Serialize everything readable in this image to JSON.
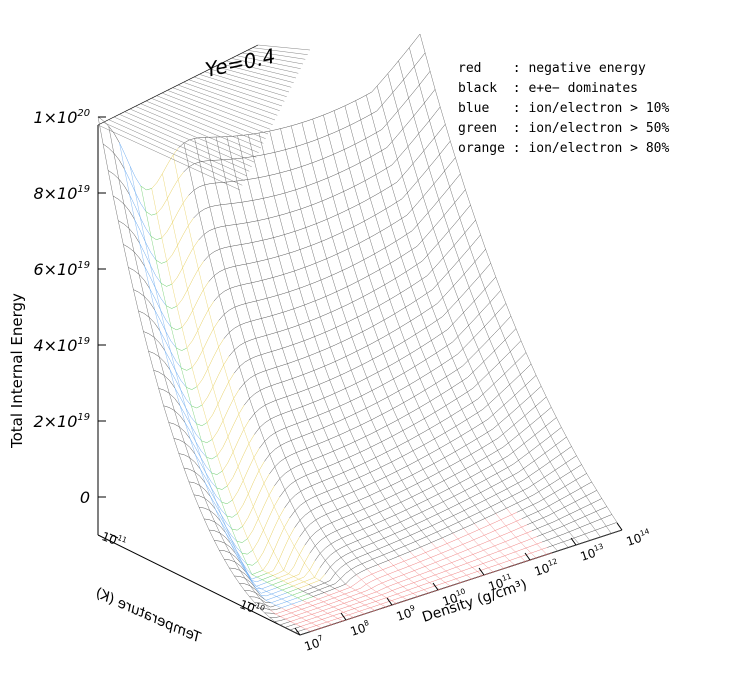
{
  "chart_data": {
    "type": "surface",
    "title": "Ye=0.4",
    "zlabel": "Total Internal Energy",
    "xlabel": "Density (g/cm³)",
    "ylabel": "Temperature (K)",
    "z_ticks": [
      {
        "base": "1×10",
        "exp": "20"
      },
      {
        "base": "8×10",
        "exp": "19"
      },
      {
        "base": "6×10",
        "exp": "19"
      },
      {
        "base": "4×10",
        "exp": "19"
      },
      {
        "base": "2×10",
        "exp": "19"
      },
      {
        "base": "0",
        "exp": ""
      }
    ],
    "z_values": [
      1e+20,
      8e+19,
      6e+19,
      4e+19,
      2e+19,
      0
    ],
    "x_ticks": [
      {
        "base": "10",
        "exp": "7"
      },
      {
        "base": "10",
        "exp": "8"
      },
      {
        "base": "10",
        "exp": "9"
      },
      {
        "base": "10",
        "exp": "10"
      },
      {
        "base": "10",
        "exp": "11"
      },
      {
        "base": "10",
        "exp": "12"
      },
      {
        "base": "10",
        "exp": "13"
      },
      {
        "base": "10",
        "exp": "14"
      }
    ],
    "y_ticks": [
      {
        "base": "10",
        "exp": "11"
      },
      {
        "base": "10",
        "exp": "10"
      }
    ],
    "legend": [
      {
        "key": "red",
        "text": "red    : negative energy",
        "color": "#f08080"
      },
      {
        "key": "black",
        "text": "black  : e+e− dominates",
        "color": "#444444"
      },
      {
        "key": "blue",
        "text": "blue   : ion/electron > 10%",
        "color": "#6aaaf0"
      },
      {
        "key": "green",
        "text": "green  : ion/electron > 50%",
        "color": "#66cc66"
      },
      {
        "key": "orange",
        "text": "orange : ion/electron > 80%",
        "color": "#e8d060"
      }
    ],
    "colors": {
      "red": "#f08080",
      "black": "#555555",
      "blue": "#6aaaf0",
      "green": "#66cc66",
      "yellow": "#e8d060"
    }
  }
}
